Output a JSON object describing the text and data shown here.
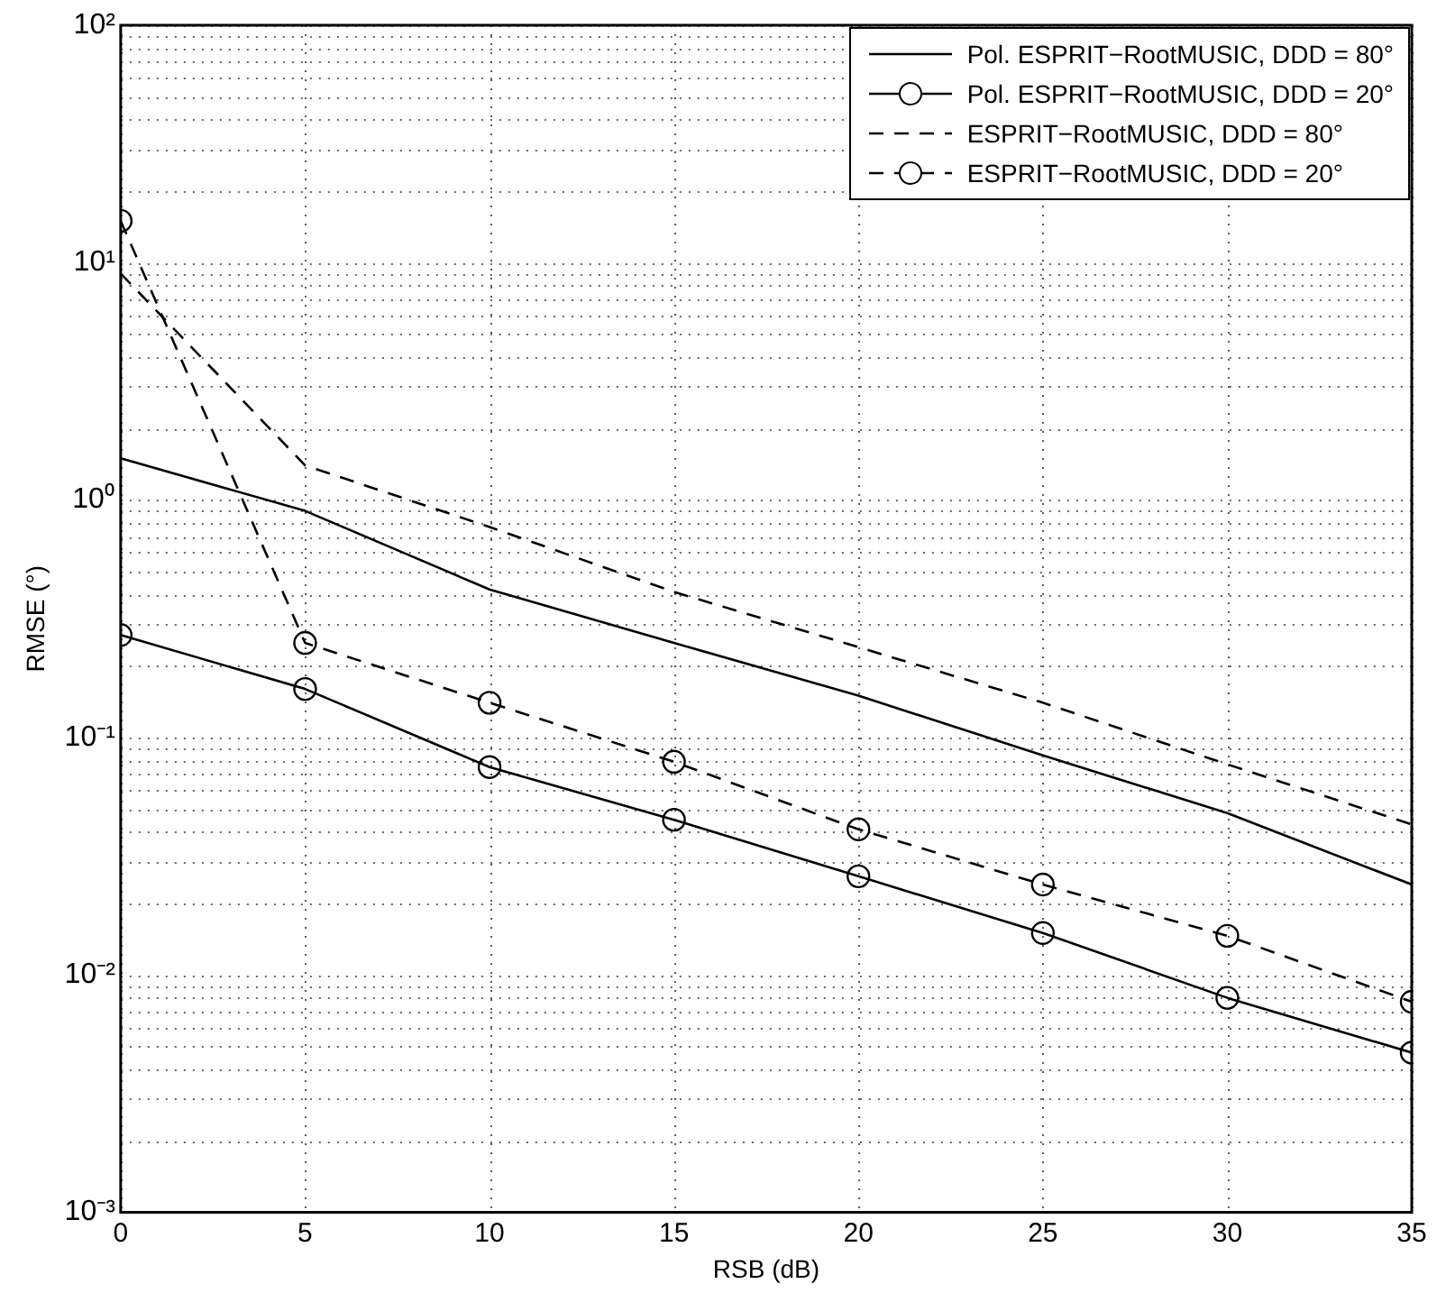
{
  "chart_data": {
    "type": "line",
    "xlabel": "RSB (dB)",
    "ylabel": "RMSE (°)",
    "x": [
      0,
      5,
      10,
      15,
      20,
      25,
      30,
      35
    ],
    "series": [
      {
        "name": "Pol. ESPRIT−RootMUSIC, DDD = 80°",
        "color": "#000000",
        "marker": "none",
        "line_style": "solid",
        "values": [
          1.5,
          0.9,
          0.42,
          0.25,
          0.15,
          0.084,
          0.048,
          0.024
        ]
      },
      {
        "name": "Pol. ESPRIT−RootMUSIC, DDD = 20°",
        "color": "#000000",
        "marker": "circle",
        "line_style": "solid",
        "values": [
          0.27,
          0.16,
          0.075,
          0.045,
          0.026,
          0.015,
          0.008,
          0.0047
        ]
      },
      {
        "name": "ESPRIT−RootMUSIC, DDD = 80°",
        "color": "#000000",
        "marker": "none",
        "line_style": "dashed",
        "values": [
          9,
          1.4,
          0.77,
          0.41,
          0.24,
          0.14,
          0.077,
          0.043
        ]
      },
      {
        "name": "ESPRIT−RootMUSIC, DDD = 20°",
        "color": "#000000",
        "marker": "circle",
        "line_style": "dashed",
        "values": [
          15,
          0.25,
          0.14,
          0.079,
          0.041,
          0.024,
          0.0146,
          0.0077
        ]
      }
    ],
    "xlim": [
      0,
      35
    ],
    "xticks": [
      0,
      5,
      10,
      15,
      20,
      25,
      30,
      35
    ],
    "ylim": [
      0.001,
      100
    ],
    "yticks": [
      {
        "value": 0.001,
        "label": "10⁻³"
      },
      {
        "value": 0.01,
        "label": "10⁻²"
      },
      {
        "value": 0.1,
        "label": "10⁻¹"
      },
      {
        "value": 1,
        "label": "10⁰"
      },
      {
        "value": 10,
        "label": "10¹"
      },
      {
        "value": 100,
        "label": "10²"
      }
    ],
    "log": "y",
    "grid": true,
    "legend": "top right"
  }
}
